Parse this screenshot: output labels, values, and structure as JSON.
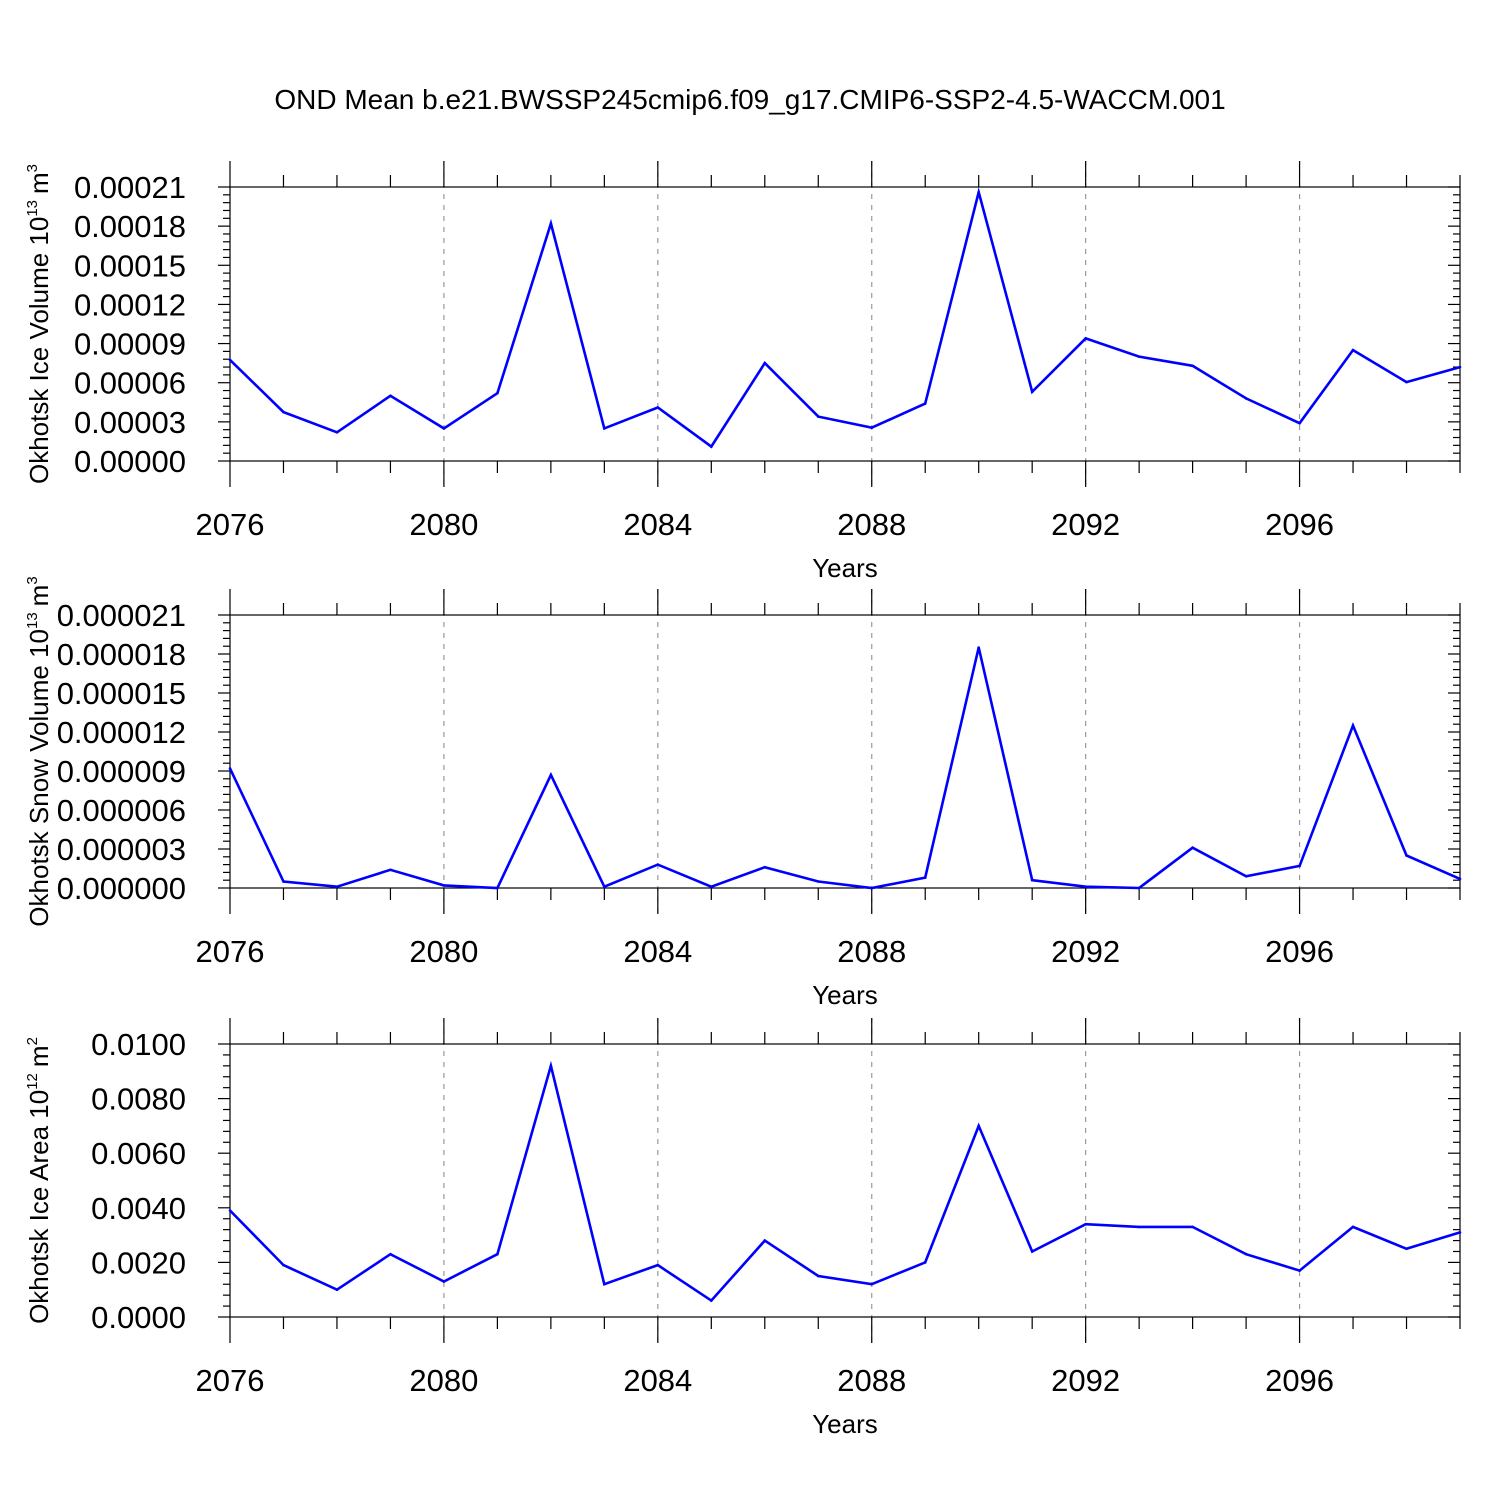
{
  "title": "OND Mean b.e21.BWSSP245cmip6.f09_g17.CMIP6-SSP2-4.5-WACCM.001",
  "colors": {
    "series": "#0000ff",
    "axis": "#000000",
    "grid": "#999999"
  },
  "chart_data": [
    {
      "type": "line",
      "title": "",
      "xlabel": "Years",
      "ylabel": {
        "text": "Okhotsk Ice Volume 10",
        "sup1": "13",
        "unit": "m",
        "sup2": "3"
      },
      "xlim": [
        2076,
        2099
      ],
      "ylim": [
        0,
        0.00021
      ],
      "x_ticks": [
        2076,
        2080,
        2084,
        2088,
        2092,
        2096
      ],
      "y_ticks": [
        "0.00000",
        "0.00003",
        "0.00006",
        "0.00009",
        "0.00012",
        "0.00015",
        "0.00018",
        "0.00021"
      ],
      "y_tick_values": [
        0,
        3e-05,
        6e-05,
        9e-05,
        0.00012,
        0.00015,
        0.00018,
        0.00021
      ],
      "grid": "vertical dashed at major x ticks",
      "series": [
        {
          "name": "Okhotsk Ice Volume",
          "x": [
            2076,
            2077,
            2078,
            2079,
            2080,
            2081,
            2082,
            2083,
            2084,
            2085,
            2086,
            2087,
            2088,
            2089,
            2090,
            2091,
            2092,
            2093,
            2094,
            2095,
            2096,
            2097,
            2098,
            2099
          ],
          "values": [
            7.75e-05,
            3.75e-05,
            2.2e-05,
            5e-05,
            2.5e-05,
            5.2e-05,
            0.000182,
            2.5e-05,
            4.1e-05,
            1.1e-05,
            7.5e-05,
            3.4e-05,
            2.55e-05,
            4.4e-05,
            0.000206,
            5.3e-05,
            9.4e-05,
            8e-05,
            7.3e-05,
            4.8e-05,
            2.9e-05,
            8.5e-05,
            6.05e-05,
            7.2e-05
          ]
        }
      ]
    },
    {
      "type": "line",
      "title": "",
      "xlabel": "Years",
      "ylabel": {
        "text": "Okhotsk Snow Volume 10",
        "sup1": "13",
        "unit": "m",
        "sup2": "3"
      },
      "xlim": [
        2076,
        2099
      ],
      "ylim": [
        0,
        2.1e-05
      ],
      "x_ticks": [
        2076,
        2080,
        2084,
        2088,
        2092,
        2096
      ],
      "y_ticks": [
        "0.000000",
        "0.000003",
        "0.000006",
        "0.000009",
        "0.000012",
        "0.000015",
        "0.000018",
        "0.000021"
      ],
      "y_tick_values": [
        0,
        3e-06,
        6e-06,
        9e-06,
        1.2e-05,
        1.5e-05,
        1.8e-05,
        2.1e-05
      ],
      "grid": "vertical dashed at major x ticks",
      "series": [
        {
          "name": "Okhotsk Snow Volume",
          "x": [
            2076,
            2077,
            2078,
            2079,
            2080,
            2081,
            2082,
            2083,
            2084,
            2085,
            2086,
            2087,
            2088,
            2089,
            2090,
            2091,
            2092,
            2093,
            2094,
            2095,
            2096,
            2097,
            2098,
            2099
          ],
          "values": [
            9.2e-06,
            5e-07,
            1e-07,
            1.4e-06,
            2e-07,
            0.0,
            8.7e-06,
            1e-07,
            1.8e-06,
            1e-07,
            1.6e-06,
            5e-07,
            0.0,
            8e-07,
            1.85e-05,
            6e-07,
            1e-07,
            0.0,
            3.1e-06,
            9e-07,
            1.7e-06,
            1.25e-05,
            2.5e-06,
            7e-07
          ]
        }
      ]
    },
    {
      "type": "line",
      "title": "",
      "xlabel": "Years",
      "ylabel": {
        "text": "Okhotsk Ice Area 10",
        "sup1": "12",
        "unit": "m",
        "sup2": "2"
      },
      "xlim": [
        2076,
        2099
      ],
      "ylim": [
        0,
        0.01
      ],
      "x_ticks": [
        2076,
        2080,
        2084,
        2088,
        2092,
        2096
      ],
      "y_ticks": [
        "0.0000",
        "0.0020",
        "0.0040",
        "0.0060",
        "0.0080",
        "0.0100"
      ],
      "y_tick_values": [
        0,
        0.002,
        0.004,
        0.006,
        0.008,
        0.01
      ],
      "grid": "vertical dashed at major x ticks",
      "series": [
        {
          "name": "Okhotsk Ice Area",
          "x": [
            2076,
            2077,
            2078,
            2079,
            2080,
            2081,
            2082,
            2083,
            2084,
            2085,
            2086,
            2087,
            2088,
            2089,
            2090,
            2091,
            2092,
            2093,
            2094,
            2095,
            2096,
            2097,
            2098,
            2099
          ],
          "values": [
            0.0039,
            0.0019,
            0.001,
            0.0023,
            0.0013,
            0.0023,
            0.0092,
            0.0012,
            0.0019,
            0.0006,
            0.0028,
            0.0015,
            0.0012,
            0.002,
            0.007,
            0.0024,
            0.0034,
            0.0033,
            0.0033,
            0.0023,
            0.0017,
            0.0033,
            0.0025,
            0.0031
          ]
        }
      ]
    }
  ]
}
